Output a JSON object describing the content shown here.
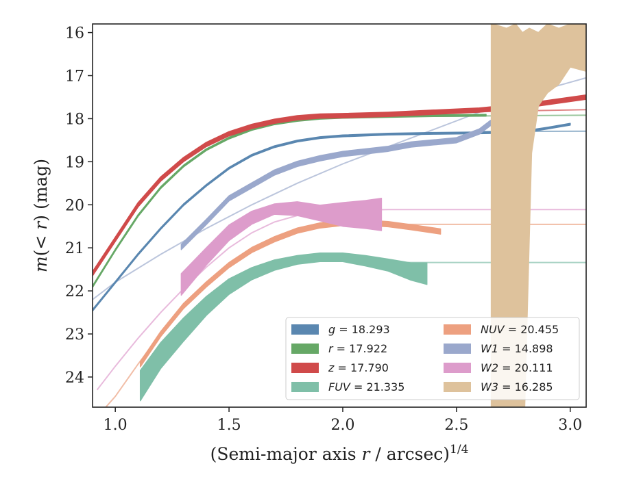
{
  "chart_data": {
    "type": "line",
    "xlabel": "(Semi-major axis r / arcsec)^{1/4}",
    "ylabel": "m(< r) (mag)",
    "xlim": [
      0.9,
      3.07
    ],
    "ylim": [
      24.7,
      15.8
    ],
    "y_inverted": true,
    "grid": false,
    "legend_position": "lower-right",
    "x_ticks": [
      1.0,
      1.5,
      2.0,
      2.5,
      3.0
    ],
    "x_tick_labels": [
      "1.0",
      "1.5",
      "2.0",
      "2.5",
      "3.0"
    ],
    "y_ticks": [
      16,
      17,
      18,
      19,
      20,
      21,
      22,
      23,
      24
    ],
    "y_tick_labels": [
      "16",
      "17",
      "18",
      "19",
      "20",
      "21",
      "22",
      "23",
      "24"
    ],
    "series": [
      {
        "band": "g",
        "total": "18.293",
        "legend": "g = 18.293",
        "color": "#4c7ea8",
        "fill": "#5a87b0",
        "x": [
          0.9,
          1.0,
          1.1,
          1.2,
          1.3,
          1.4,
          1.5,
          1.6,
          1.7,
          1.8,
          1.9,
          2.0,
          2.2,
          2.4,
          2.6,
          2.7,
          2.8,
          2.9,
          3.0
        ],
        "y": [
          22.45,
          21.8,
          21.15,
          20.55,
          20.0,
          19.55,
          19.15,
          18.85,
          18.65,
          18.52,
          18.44,
          18.4,
          18.36,
          18.34,
          18.33,
          18.32,
          18.3,
          18.22,
          18.13
        ],
        "err": 0.02,
        "model_x": [
          2.6,
          3.07
        ],
        "model_y": [
          18.3,
          18.29
        ]
      },
      {
        "band": "r",
        "total": "17.922",
        "legend": "r = 17.922",
        "color": "#55a05a",
        "fill": "#66a866",
        "x": [
          0.9,
          1.0,
          1.1,
          1.2,
          1.3,
          1.4,
          1.5,
          1.6,
          1.7,
          1.8,
          1.9,
          2.0,
          2.2,
          2.4,
          2.63
        ],
        "y": [
          21.9,
          21.05,
          20.25,
          19.6,
          19.1,
          18.72,
          18.45,
          18.25,
          18.12,
          18.04,
          17.99,
          17.97,
          17.95,
          17.93,
          17.92
        ],
        "err": 0.02,
        "model_x": [
          2.2,
          3.07
        ],
        "model_y": [
          17.95,
          17.92
        ]
      },
      {
        "band": "z",
        "total": "17.790",
        "legend": "z = 17.790",
        "color": "#cc3535",
        "fill": "#d04a4a",
        "x": [
          0.9,
          1.0,
          1.1,
          1.2,
          1.3,
          1.4,
          1.5,
          1.6,
          1.7,
          1.8,
          1.9,
          2.0,
          2.2,
          2.4,
          2.6,
          2.8,
          3.07
        ],
        "y": [
          21.6,
          20.8,
          20.0,
          19.4,
          18.95,
          18.6,
          18.35,
          18.18,
          18.06,
          17.98,
          17.94,
          17.93,
          17.9,
          17.85,
          17.8,
          17.7,
          17.5
        ],
        "err": 0.05,
        "model_x": [
          2.0,
          3.07
        ],
        "model_y": [
          17.9,
          17.79
        ]
      },
      {
        "band": "FUV",
        "total": "21.335",
        "legend": "FUV = 21.335",
        "color": "#6cb49c",
        "fill": "#7fbfa8",
        "x": [
          1.11,
          1.2,
          1.3,
          1.4,
          1.5,
          1.6,
          1.7,
          1.8,
          1.9,
          2.0,
          2.1,
          2.2,
          2.3,
          2.37
        ],
        "y": [
          24.2,
          23.5,
          22.9,
          22.35,
          21.9,
          21.6,
          21.4,
          21.28,
          21.22,
          21.22,
          21.3,
          21.4,
          21.55,
          21.6
        ],
        "err_lo": [
          0.35,
          0.3,
          0.27,
          0.22,
          0.18,
          0.14,
          0.12,
          0.1,
          0.1,
          0.1,
          0.12,
          0.14,
          0.2,
          0.25
        ],
        "err_hi": [
          0.35,
          0.3,
          0.27,
          0.22,
          0.18,
          0.14,
          0.12,
          0.1,
          0.1,
          0.1,
          0.12,
          0.14,
          0.2,
          0.25
        ],
        "model_x": [
          2.2,
          3.07
        ],
        "model_y": [
          21.34,
          21.34
        ]
      },
      {
        "band": "NUV",
        "total": "20.455",
        "legend": "NUV = 20.455",
        "color": "#e8916a",
        "fill": "#eda080",
        "x": [
          1.11,
          1.2,
          1.3,
          1.4,
          1.5,
          1.6,
          1.7,
          1.8,
          1.9,
          2.0,
          2.1,
          2.2,
          2.3,
          2.43
        ],
        "y": [
          23.7,
          23.0,
          22.35,
          21.85,
          21.4,
          21.05,
          20.8,
          20.6,
          20.48,
          20.42,
          20.42,
          20.45,
          20.52,
          20.62
        ],
        "err": 0.06,
        "model_x": [
          0.95,
          1.0,
          1.1,
          1.2,
          1.3,
          1.4,
          1.5,
          1.6,
          1.7,
          1.8,
          1.9,
          2.0,
          2.2,
          2.4,
          3.07
        ],
        "model_y": [
          24.75,
          24.45,
          23.7,
          23.0,
          22.35,
          21.85,
          21.4,
          21.05,
          20.8,
          20.62,
          20.5,
          20.46,
          20.455,
          20.455,
          20.455
        ]
      },
      {
        "band": "W1",
        "total": "14.898",
        "legend": "W1 = 14.898",
        "color": "#8e9ec4",
        "fill": "#9aa8cc",
        "x": [
          1.29,
          1.4,
          1.5,
          1.6,
          1.7,
          1.8,
          1.9,
          2.0,
          2.1,
          2.2,
          2.3,
          2.4,
          2.5,
          2.6,
          2.65
        ],
        "y": [
          20.98,
          20.4,
          19.85,
          19.55,
          19.25,
          19.05,
          18.92,
          18.82,
          18.76,
          18.7,
          18.6,
          18.55,
          18.5,
          18.3,
          18.1
        ],
        "err": 0.06,
        "model_x": [
          0.9,
          1.0,
          1.2,
          1.4,
          1.6,
          1.8,
          2.0,
          2.2,
          2.4,
          2.6,
          2.8,
          3.07
        ],
        "model_y": [
          22.2,
          21.8,
          21.15,
          20.55,
          20.0,
          19.5,
          19.05,
          18.65,
          18.25,
          17.85,
          17.45,
          17.05
        ]
      },
      {
        "band": "W2",
        "total": "20.111",
        "legend": "W2 = 20.111",
        "color": "#d98cc4",
        "fill": "#dd9ccb",
        "x": [
          1.29,
          1.4,
          1.5,
          1.6,
          1.7,
          1.8,
          1.9,
          2.0,
          2.1,
          2.17
        ],
        "y": [
          21.85,
          21.2,
          20.65,
          20.3,
          20.1,
          20.05,
          20.15,
          20.25,
          20.25,
          20.3
        ],
        "err_lo": [
          0.25,
          0.2,
          0.18,
          0.15,
          0.12,
          0.12,
          0.14,
          0.3,
          0.35,
          0.45
        ],
        "err_hi": [
          0.25,
          0.2,
          0.18,
          0.15,
          0.12,
          0.2,
          0.22,
          0.25,
          0.3,
          0.3
        ],
        "model_x": [
          0.92,
          1.0,
          1.1,
          1.2,
          1.3,
          1.4,
          1.5,
          1.6,
          1.7,
          1.8,
          1.9,
          2.0,
          2.2,
          3.07
        ],
        "model_y": [
          24.3,
          23.75,
          23.1,
          22.5,
          21.95,
          21.45,
          21.0,
          20.65,
          20.4,
          20.25,
          20.17,
          20.13,
          20.111,
          20.111
        ]
      },
      {
        "band": "W3",
        "total": "16.285",
        "legend": "W3 = 16.285",
        "color": "#d9bf96",
        "fill": "#dec29c",
        "band_polygon_x": [
          2.653,
          2.66,
          2.72,
          2.76,
          2.79,
          2.82,
          2.86,
          2.9,
          2.95,
          3.0,
          3.07,
          3.07,
          3.0,
          2.95,
          2.9,
          2.86,
          2.83,
          2.8,
          2.76,
          2.72,
          2.653
        ],
        "band_polygon_y": [
          15.8,
          15.8,
          15.9,
          15.8,
          16.0,
          15.9,
          16.0,
          15.8,
          15.9,
          15.8,
          15.8,
          16.9,
          16.8,
          17.2,
          17.4,
          17.7,
          18.8,
          24.7,
          24.7,
          24.7,
          24.7
        ],
        "model_x": [
          2.75,
          2.8,
          2.85,
          2.9,
          2.95,
          3.0,
          3.07
        ],
        "model_y": [
          18.2,
          17.8,
          17.5,
          17.2,
          16.9,
          16.55,
          16.3
        ]
      }
    ]
  },
  "legend": [
    {
      "name": "g",
      "value": "18.293",
      "color": "#5a87b0"
    },
    {
      "name": "r",
      "value": "17.922",
      "color": "#66a866"
    },
    {
      "name": "z",
      "value": "17.790",
      "color": "#d04a4a"
    },
    {
      "name": "FUV",
      "value": "21.335",
      "color": "#7fbfa8"
    },
    {
      "name": "NUV",
      "value": "20.455",
      "color": "#eda080"
    },
    {
      "name": "W1",
      "value": "14.898",
      "color": "#9aa8cc"
    },
    {
      "name": "W2",
      "value": "20.111",
      "color": "#dd9ccb"
    },
    {
      "name": "W3",
      "value": "16.285",
      "color": "#dec29c"
    }
  ],
  "axis_labels": {
    "x_main": "(Semi-major axis ",
    "x_var": "r",
    "x_after": " / arcsec)",
    "x_exp": "1/4",
    "y_m": "m",
    "y_open": "(< ",
    "y_r": "r",
    "y_close": ") (mag)"
  }
}
